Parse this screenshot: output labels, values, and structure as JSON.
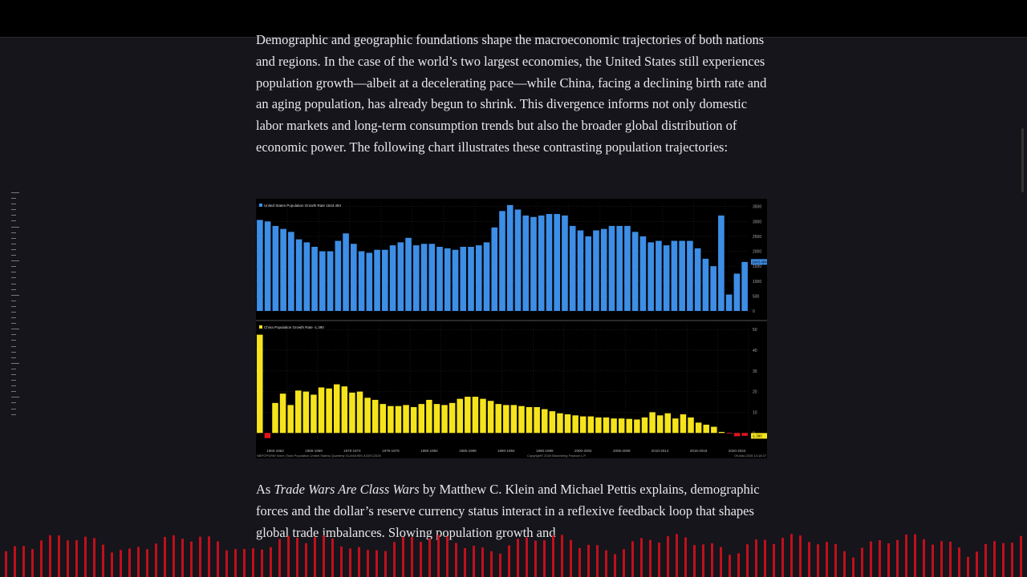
{
  "article": {
    "paragraph1": "Demographic and geographic foundations shape the macroeconomic trajectories of both nations and regions. In the case of the world’s two largest economies, the United States still experiences population growth—albeit at a decelerating pace—while China, facing a declining birth rate and an aging population, has already begun to shrink. This divergence informs not only domestic labor markets and long-term consumption trends but also the broader global distribution of economic power. The following chart illustrates these contrasting population trajectories:",
    "para2_prefix": "As ",
    "para2_book": "Trade Wars Are Class Wars",
    "para2_rest": " by Matthew C. Klein and Michael Pettis explains, demographic forces and the dollar’s reserve currency status interact in a reflexive feedback loop that shapes global trade imbalances. Slowing population growth and"
  },
  "colors": {
    "us": "#3d8ee6",
    "china": "#f5e41c",
    "negative": "#e0141e",
    "wave": "#c8101c"
  },
  "chart_data": [
    {
      "type": "bar",
      "title": "United States Population Growth Rate 1643.484",
      "ylim": [
        0,
        3600
      ],
      "yticks": [
        0,
        500,
        1000,
        1500,
        2000,
        2500,
        3000,
        3500
      ],
      "ytick_labels": [
        "0",
        "500",
        "1000",
        "1500",
        "2000",
        "2500",
        "3000",
        "3500"
      ],
      "last_value_label": "1643.484",
      "values": [
        3050,
        3000,
        2850,
        2750,
        2650,
        2400,
        2300,
        2150,
        2000,
        2000,
        2350,
        2600,
        2250,
        2000,
        1950,
        2050,
        2050,
        2200,
        2300,
        2450,
        2200,
        2250,
        2250,
        2150,
        2100,
        2050,
        2150,
        2150,
        2200,
        2300,
        2800,
        3350,
        3550,
        3400,
        3200,
        3150,
        3200,
        3250,
        3250,
        3200,
        2850,
        2700,
        2500,
        2700,
        2750,
        2850,
        2850,
        2850,
        2650,
        2500,
        2300,
        2350,
        2200,
        2350,
        2350,
        2350,
        2100,
        1750,
        1500,
        3200,
        550,
        1250,
        1643
      ]
    },
    {
      "type": "bar",
      "title": "China Population Growth Rate -1.390",
      "ylim": [
        -3,
        52
      ],
      "yticks": [
        0,
        10,
        20,
        30,
        40,
        50
      ],
      "ytick_labels": [
        "0",
        "10",
        "20",
        "30",
        "40",
        "50"
      ],
      "last_value_label": "-1.390",
      "values": [
        47.5,
        -2.5,
        14.5,
        19,
        13.5,
        20.5,
        20,
        18.5,
        22,
        21.5,
        23.5,
        22.5,
        19.5,
        20,
        17,
        16,
        14,
        13,
        13,
        13.5,
        12.5,
        14,
        16,
        14,
        13.5,
        14.5,
        16.5,
        17.5,
        17.5,
        16.5,
        15.5,
        14,
        13.5,
        13.5,
        13,
        12.5,
        12.5,
        11.5,
        10.5,
        9.5,
        9,
        8.5,
        8,
        8,
        7.5,
        7.5,
        7,
        7,
        6.8,
        6.5,
        7.5,
        10,
        8.5,
        9.5,
        7,
        9,
        7.5,
        5,
        4,
        3,
        0.5,
        -0.2,
        -1.6,
        -1.4
      ],
      "x_tick_labels": [
        "1960-1964",
        "1965-1969",
        "1970-1974",
        "1975-1979",
        "1980-1984",
        "1985-1989",
        "1990-1994",
        "1995-1999",
        "2000-2004",
        "2005-2009",
        "2010-2014",
        "2015-2019",
        "2020-2024"
      ]
    }
  ],
  "chart_footer": {
    "left": "NBPOPGRW Index (Total Population United States)  Quarterly 01JAN1959-31DEC2025",
    "center": "Copyright© 2025 Bloomberg Finance L.P.",
    "right": "09-Mar-2025 13:18:37"
  }
}
